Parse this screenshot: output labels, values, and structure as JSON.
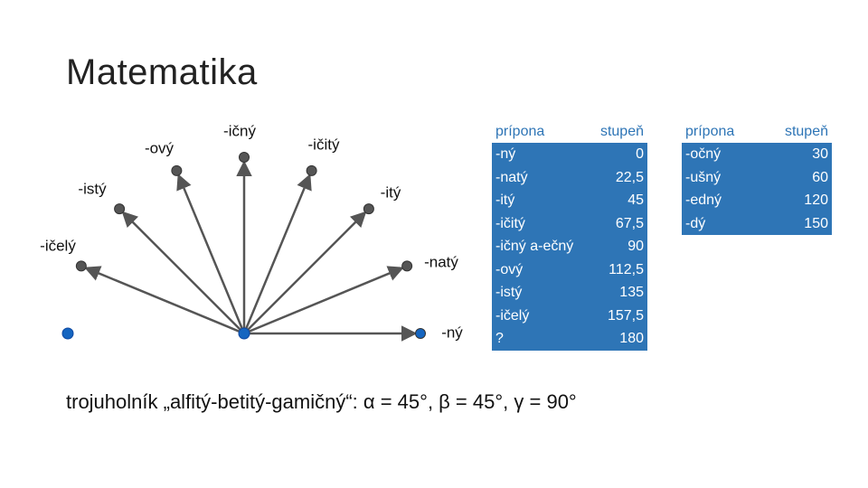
{
  "slide": {
    "title": "Matematika"
  },
  "diagram": {
    "labels": [
      "-ný",
      "-natý",
      "-itý",
      "-ičitý",
      "-ičný",
      "-ový",
      "-istý",
      "-ičelý"
    ],
    "colors": {
      "arrow": "#555555",
      "endpoint": "#555555",
      "origin_point": "#1565C0"
    }
  },
  "table1": {
    "headers": [
      "prípona",
      "stupeň"
    ],
    "rows": [
      {
        "suffix": "-ný",
        "degree": "0"
      },
      {
        "suffix": "-natý",
        "degree": "22,5"
      },
      {
        "suffix": "-itý",
        "degree": "45"
      },
      {
        "suffix": "-ičitý",
        "degree": "67,5"
      },
      {
        "suffix": "-ičný a-ečný",
        "degree": "90"
      },
      {
        "suffix": "-ový",
        "degree": "112,5"
      },
      {
        "suffix": "-istý",
        "degree": "135"
      },
      {
        "suffix": "-ičelý",
        "degree": "157,5"
      },
      {
        "suffix": "?",
        "degree": "180"
      }
    ]
  },
  "table2": {
    "headers": [
      "prípona",
      "stupeň"
    ],
    "rows": [
      {
        "suffix": "-očný",
        "degree": "30"
      },
      {
        "suffix": "-ušný",
        "degree": "60"
      },
      {
        "suffix": "-edný",
        "degree": "120"
      },
      {
        "suffix": "-dý",
        "degree": "150"
      }
    ]
  },
  "formula": {
    "text": "trojuholník „alfitý-betitý-gamičný“: α = 45°, β = 45°, γ = 90°"
  },
  "colors": {
    "table_fill": "#2E75B6",
    "header_text": "#2E75B6"
  }
}
